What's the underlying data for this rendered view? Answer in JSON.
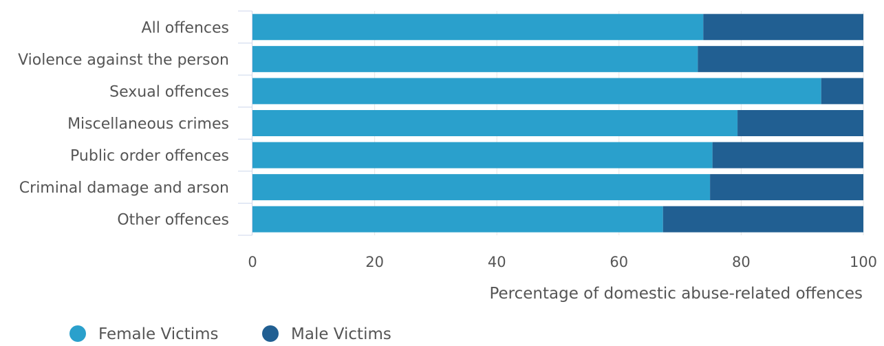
{
  "chart_data": {
    "type": "bar",
    "orientation": "horizontal",
    "stacked": true,
    "categories": [
      "All offences",
      "Violence against the person",
      "Sexual offences",
      "Miscellaneous crimes",
      "Public order offences",
      "Criminal damage and arson",
      "Other offences"
    ],
    "series": [
      {
        "name": "Female Victims",
        "color": "#2aa0cc",
        "values": [
          73.8,
          72.9,
          93.1,
          79.4,
          75.3,
          74.9,
          67.2
        ]
      },
      {
        "name": "Male Victims",
        "color": "#215f92",
        "values": [
          26.2,
          27.1,
          6.9,
          20.6,
          24.7,
          25.1,
          32.8
        ]
      }
    ],
    "xlabel": "Percentage of domestic abuse-related offences",
    "ylabel": "",
    "xlim": [
      0,
      100
    ],
    "xticks": [
      "0",
      "20",
      "40",
      "60",
      "80",
      "100"
    ],
    "grid": true,
    "legend_position": "bottom-left",
    "colors": {
      "gridline": "#e6e6e6",
      "axis": "#ccd6eb"
    }
  }
}
